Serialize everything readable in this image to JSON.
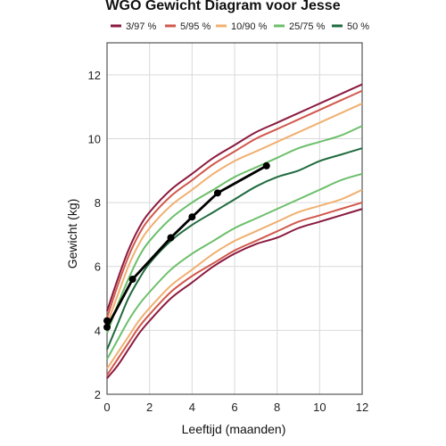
{
  "chart_data": {
    "type": "line",
    "title": "WGO Gewicht Diagram voor Jesse",
    "xlabel": "Leeftijd (maanden)",
    "ylabel": "Gewicht (kg)",
    "xlim": [
      0,
      12
    ],
    "ylim": [
      2,
      13
    ],
    "xticks": [
      "0",
      "2",
      "4",
      "6",
      "8",
      "10",
      "12"
    ],
    "yticks": [
      "2",
      "4",
      "6",
      "8",
      "10",
      "12"
    ],
    "grid": true,
    "legend": [
      "3/97 %",
      "5/95 %",
      "10/90 %",
      "25/75 %",
      "50 %"
    ],
    "legend_position": "top",
    "percentile_x": [
      0,
      0.5,
      1,
      1.5,
      2,
      3,
      4,
      5,
      6,
      7,
      8,
      9,
      10,
      11,
      12
    ],
    "percentile_curves": [
      {
        "name": "3/97 %",
        "color": "#8b1a3f",
        "values": [
          4.6,
          5.6,
          6.5,
          7.2,
          7.7,
          8.4,
          8.9,
          9.4,
          9.8,
          10.2,
          10.5,
          10.8,
          11.1,
          11.4,
          11.7
        ]
      },
      {
        "name": "3/97 %",
        "color": "#8b1a3f",
        "values": [
          2.5,
          2.9,
          3.4,
          3.9,
          4.3,
          5.0,
          5.5,
          6.0,
          6.4,
          6.7,
          6.9,
          7.2,
          7.4,
          7.6,
          7.8
        ]
      },
      {
        "name": "5/95 %",
        "color": "#d1584c",
        "values": [
          4.4,
          5.4,
          6.3,
          7.0,
          7.5,
          8.2,
          8.7,
          9.2,
          9.6,
          10.0,
          10.3,
          10.6,
          10.9,
          11.2,
          11.5
        ]
      },
      {
        "name": "5/95 %",
        "color": "#d1584c",
        "values": [
          2.6,
          3.1,
          3.6,
          4.1,
          4.5,
          5.2,
          5.7,
          6.1,
          6.5,
          6.8,
          7.1,
          7.4,
          7.6,
          7.8,
          8.0
        ]
      },
      {
        "name": "10/90 %",
        "color": "#f0b070",
        "values": [
          4.2,
          5.1,
          6.0,
          6.7,
          7.2,
          7.9,
          8.4,
          8.9,
          9.3,
          9.6,
          9.9,
          10.2,
          10.5,
          10.8,
          11.1
        ]
      },
      {
        "name": "10/90 %",
        "color": "#f0b070",
        "values": [
          2.8,
          3.3,
          3.8,
          4.3,
          4.7,
          5.4,
          5.9,
          6.4,
          6.8,
          7.1,
          7.4,
          7.7,
          7.9,
          8.1,
          8.4
        ]
      },
      {
        "name": "25/75 %",
        "color": "#6cbf6a",
        "values": [
          3.9,
          4.8,
          5.6,
          6.3,
          6.8,
          7.5,
          8.0,
          8.4,
          8.8,
          9.1,
          9.4,
          9.7,
          9.9,
          10.1,
          10.4
        ]
      },
      {
        "name": "25/75 %",
        "color": "#6cbf6a",
        "values": [
          3.1,
          3.7,
          4.3,
          4.8,
          5.2,
          5.9,
          6.4,
          6.8,
          7.2,
          7.5,
          7.8,
          8.1,
          8.4,
          8.7,
          8.9
        ]
      },
      {
        "name": "50 %",
        "color": "#1f6b3e",
        "values": [
          3.4,
          4.2,
          5.0,
          5.6,
          6.1,
          6.8,
          7.3,
          7.7,
          8.1,
          8.5,
          8.8,
          9.0,
          9.3,
          9.5,
          9.7
        ]
      }
    ],
    "child_series": {
      "color": "#000000",
      "x": [
        0,
        0,
        1.2,
        3.0,
        4.0,
        5.2,
        7.5
      ],
      "y": [
        4.3,
        4.1,
        5.6,
        6.9,
        7.55,
        8.3,
        9.15
      ]
    }
  }
}
